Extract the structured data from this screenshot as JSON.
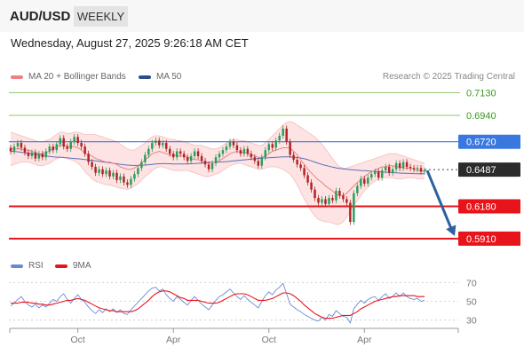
{
  "header": {
    "symbol": "AUD/USD",
    "timeframe": "WEEKLY",
    "datetime": "Wednesday, August 27, 2025 9:26:18 AM CET"
  },
  "legend": {
    "ma20": "MA 20 + Bollinger Bands",
    "ma50": "MA 50",
    "copyright": "Research © 2025 Trading Central",
    "rsi": "RSI",
    "rsi_ma": "9MA"
  },
  "colors": {
    "bollinger_fill": "#fde3e3",
    "ma20": "#f08080",
    "ma50": "#5a6fb8",
    "resistance_green": "#8cc76a",
    "pivot_blue": "#3a78e0",
    "support_red": "#e8141b",
    "candle_up": "#2e9c5c",
    "candle_down": "#b02424",
    "rsi_line": "#6a8ad6",
    "rsi_ma_line": "#e8141b",
    "arrow": "#2e5f9e"
  },
  "chart_data": [
    {
      "type": "candlestick",
      "title": "AUD/USD WEEKLY",
      "x_ticks": [
        "Oct",
        "Apr",
        "Oct",
        "Apr"
      ],
      "ylim": [
        0.585,
        0.72
      ],
      "current_price": "0.6487",
      "levels": [
        {
          "label": "0.7130",
          "value": 0.713,
          "kind": "resistance"
        },
        {
          "label": "0.6940",
          "value": 0.694,
          "kind": "resistance"
        },
        {
          "label": "0.6720",
          "value": 0.672,
          "kind": "pivot"
        },
        {
          "label": "0.6180",
          "value": 0.618,
          "kind": "support"
        },
        {
          "label": "0.5910",
          "value": 0.591,
          "kind": "support"
        }
      ],
      "projection": {
        "from": 0.648,
        "to": 0.591
      },
      "candles": [
        [
          0.667,
          0.664
        ],
        [
          0.664,
          0.668
        ],
        [
          0.668,
          0.671
        ],
        [
          0.671,
          0.667
        ],
        [
          0.667,
          0.663
        ],
        [
          0.663,
          0.66
        ],
        [
          0.66,
          0.663
        ],
        [
          0.663,
          0.658
        ],
        [
          0.658,
          0.662
        ],
        [
          0.662,
          0.659
        ],
        [
          0.659,
          0.664
        ],
        [
          0.664,
          0.668
        ],
        [
          0.668,
          0.665
        ],
        [
          0.665,
          0.67
        ],
        [
          0.67,
          0.675
        ],
        [
          0.675,
          0.668
        ],
        [
          0.668,
          0.666
        ],
        [
          0.666,
          0.672
        ],
        [
          0.672,
          0.676
        ],
        [
          0.676,
          0.671
        ],
        [
          0.671,
          0.668
        ],
        [
          0.668,
          0.662
        ],
        [
          0.662,
          0.655
        ],
        [
          0.655,
          0.651
        ],
        [
          0.651,
          0.646
        ],
        [
          0.646,
          0.649
        ],
        [
          0.649,
          0.645
        ],
        [
          0.645,
          0.648
        ],
        [
          0.648,
          0.643
        ],
        [
          0.643,
          0.646
        ],
        [
          0.646,
          0.64
        ],
        [
          0.64,
          0.643
        ],
        [
          0.643,
          0.638
        ],
        [
          0.638,
          0.636
        ],
        [
          0.636,
          0.641
        ],
        [
          0.641,
          0.645
        ],
        [
          0.645,
          0.65
        ],
        [
          0.65,
          0.655
        ],
        [
          0.655,
          0.661
        ],
        [
          0.661,
          0.666
        ],
        [
          0.666,
          0.671
        ],
        [
          0.671,
          0.673
        ],
        [
          0.673,
          0.669
        ],
        [
          0.669,
          0.671
        ],
        [
          0.671,
          0.666
        ],
        [
          0.666,
          0.662
        ],
        [
          0.662,
          0.659
        ],
        [
          0.659,
          0.664
        ],
        [
          0.664,
          0.662
        ],
        [
          0.662,
          0.659
        ],
        [
          0.659,
          0.656
        ],
        [
          0.656,
          0.66
        ],
        [
          0.66,
          0.664
        ],
        [
          0.664,
          0.66
        ],
        [
          0.66,
          0.656
        ],
        [
          0.656,
          0.653
        ],
        [
          0.653,
          0.649
        ],
        [
          0.649,
          0.654
        ],
        [
          0.654,
          0.659
        ],
        [
          0.659,
          0.662
        ],
        [
          0.662,
          0.665
        ],
        [
          0.665,
          0.668
        ],
        [
          0.668,
          0.672
        ],
        [
          0.672,
          0.669
        ],
        [
          0.669,
          0.665
        ],
        [
          0.665,
          0.662
        ],
        [
          0.662,
          0.666
        ],
        [
          0.666,
          0.662
        ],
        [
          0.662,
          0.659
        ],
        [
          0.659,
          0.656
        ],
        [
          0.656,
          0.652
        ],
        [
          0.652,
          0.659
        ],
        [
          0.659,
          0.665
        ],
        [
          0.665,
          0.67
        ],
        [
          0.67,
          0.667
        ],
        [
          0.667,
          0.673
        ],
        [
          0.673,
          0.677
        ],
        [
          0.677,
          0.683
        ],
        [
          0.683,
          0.672
        ],
        [
          0.672,
          0.661
        ],
        [
          0.661,
          0.657
        ],
        [
          0.657,
          0.653
        ],
        [
          0.653,
          0.65
        ],
        [
          0.65,
          0.644
        ],
        [
          0.644,
          0.638
        ],
        [
          0.638,
          0.632
        ],
        [
          0.632,
          0.625
        ],
        [
          0.625,
          0.621
        ],
        [
          0.621,
          0.624
        ],
        [
          0.624,
          0.62
        ],
        [
          0.62,
          0.625
        ],
        [
          0.625,
          0.623
        ],
        [
          0.623,
          0.631
        ],
        [
          0.631,
          0.627
        ],
        [
          0.627,
          0.624
        ],
        [
          0.624,
          0.621
        ],
        [
          0.621,
          0.605
        ],
        [
          0.605,
          0.629
        ],
        [
          0.629,
          0.635
        ],
        [
          0.635,
          0.641
        ],
        [
          0.641,
          0.637
        ],
        [
          0.637,
          0.642
        ],
        [
          0.642,
          0.645
        ],
        [
          0.645,
          0.647
        ],
        [
          0.647,
          0.642
        ],
        [
          0.642,
          0.648
        ],
        [
          0.648,
          0.651
        ],
        [
          0.651,
          0.646
        ],
        [
          0.646,
          0.649
        ],
        [
          0.649,
          0.654
        ],
        [
          0.654,
          0.65
        ],
        [
          0.65,
          0.655
        ],
        [
          0.655,
          0.651
        ],
        [
          0.651,
          0.65
        ],
        [
          0.65,
          0.649
        ],
        [
          0.649,
          0.65
        ],
        [
          0.65,
          0.647
        ],
        [
          0.647,
          0.648
        ]
      ],
      "ma50": [
        0.664,
        0.6638,
        0.6636,
        0.6632,
        0.6628,
        0.6624,
        0.662,
        0.6615,
        0.661,
        0.6605,
        0.66,
        0.6597,
        0.6594,
        0.6592,
        0.659,
        0.6588,
        0.6585,
        0.6582,
        0.658,
        0.6578,
        0.6575,
        0.6572,
        0.6568,
        0.6564,
        0.656,
        0.6556,
        0.6552,
        0.6548,
        0.6544,
        0.654,
        0.6536,
        0.6532,
        0.6528,
        0.6525,
        0.6523,
        0.6522,
        0.6522,
        0.6523,
        0.6525,
        0.6528,
        0.6531,
        0.6534,
        0.6536,
        0.6537,
        0.6537,
        0.6536,
        0.6535,
        0.6535,
        0.6535,
        0.6535,
        0.6535,
        0.6536,
        0.6538,
        0.654,
        0.6542,
        0.6544,
        0.6546,
        0.6548,
        0.6549,
        0.655,
        0.6552,
        0.6554,
        0.6557,
        0.656,
        0.6563,
        0.6566,
        0.6569,
        0.6572,
        0.6575,
        0.6578,
        0.658,
        0.6582,
        0.6584,
        0.6586,
        0.6588,
        0.659,
        0.6592,
        0.6594,
        0.6594,
        0.6593,
        0.6591,
        0.6588,
        0.6584,
        0.6578,
        0.657,
        0.656,
        0.655,
        0.654,
        0.653,
        0.6522,
        0.6515,
        0.6508,
        0.6502,
        0.6497,
        0.6493,
        0.649,
        0.6487,
        0.6484,
        0.6482,
        0.648,
        0.6478,
        0.6476,
        0.6474,
        0.6472,
        0.647,
        0.6468,
        0.6466,
        0.6464,
        0.6462,
        0.646,
        0.6458,
        0.6457,
        0.6456,
        0.6455,
        0.6454,
        0.6453,
        0.6452,
        0.6452
      ],
      "bollinger": {
        "upper": [
          0.68,
          0.679,
          0.678,
          0.677,
          0.676,
          0.675,
          0.674,
          0.673,
          0.672,
          0.672,
          0.673,
          0.674,
          0.676,
          0.678,
          0.68,
          0.68,
          0.679,
          0.679,
          0.68,
          0.68,
          0.679,
          0.678,
          0.678,
          0.678,
          0.678,
          0.677,
          0.676,
          0.675,
          0.674,
          0.673,
          0.672,
          0.67,
          0.668,
          0.666,
          0.665,
          0.665,
          0.667,
          0.669,
          0.671,
          0.674,
          0.676,
          0.677,
          0.677,
          0.676,
          0.675,
          0.674,
          0.674,
          0.673,
          0.673,
          0.672,
          0.671,
          0.67,
          0.669,
          0.669,
          0.669,
          0.668,
          0.667,
          0.666,
          0.666,
          0.667,
          0.669,
          0.671,
          0.673,
          0.674,
          0.674,
          0.673,
          0.673,
          0.672,
          0.671,
          0.67,
          0.669,
          0.669,
          0.671,
          0.674,
          0.677,
          0.68,
          0.683,
          0.686,
          0.688,
          0.689,
          0.688,
          0.686,
          0.684,
          0.682,
          0.68,
          0.678,
          0.676,
          0.673,
          0.67,
          0.666,
          0.662,
          0.658,
          0.654,
          0.651,
          0.65,
          0.65,
          0.651,
          0.652,
          0.653,
          0.654,
          0.655,
          0.656,
          0.657,
          0.658,
          0.659,
          0.66,
          0.661,
          0.662,
          0.662,
          0.662,
          0.661,
          0.66,
          0.659,
          0.658,
          0.657,
          0.656,
          0.655,
          0.654
        ],
        "lower": [
          0.652,
          0.653,
          0.654,
          0.655,
          0.655,
          0.655,
          0.654,
          0.653,
          0.652,
          0.652,
          0.653,
          0.654,
          0.656,
          0.658,
          0.659,
          0.659,
          0.658,
          0.657,
          0.656,
          0.654,
          0.651,
          0.647,
          0.644,
          0.641,
          0.639,
          0.638,
          0.637,
          0.636,
          0.636,
          0.635,
          0.634,
          0.633,
          0.633,
          0.632,
          0.633,
          0.635,
          0.637,
          0.64,
          0.643,
          0.645,
          0.648,
          0.65,
          0.651,
          0.651,
          0.65,
          0.649,
          0.648,
          0.648,
          0.648,
          0.648,
          0.648,
          0.647,
          0.646,
          0.645,
          0.644,
          0.643,
          0.643,
          0.644,
          0.645,
          0.646,
          0.648,
          0.65,
          0.652,
          0.653,
          0.654,
          0.654,
          0.653,
          0.652,
          0.651,
          0.65,
          0.649,
          0.649,
          0.65,
          0.651,
          0.651,
          0.651,
          0.65,
          0.649,
          0.647,
          0.645,
          0.641,
          0.636,
          0.63,
          0.624,
          0.619,
          0.614,
          0.61,
          0.607,
          0.606,
          0.605,
          0.605,
          0.604,
          0.603,
          0.603,
          0.605,
          0.609,
          0.614,
          0.619,
          0.623,
          0.627,
          0.631,
          0.634,
          0.637,
          0.639,
          0.641,
          0.642,
          0.642,
          0.642,
          0.642,
          0.641,
          0.641,
          0.641,
          0.642,
          0.642,
          0.642,
          0.641,
          0.641,
          0.641
        ]
      },
      "ma20": [
        0.666,
        0.666,
        0.666,
        0.666,
        0.665,
        0.665,
        0.664,
        0.663,
        0.662,
        0.662,
        0.663,
        0.664,
        0.666,
        0.668,
        0.669,
        0.669,
        0.668,
        0.668,
        0.668,
        0.667,
        0.665,
        0.662,
        0.661,
        0.66,
        0.658,
        0.657,
        0.656,
        0.655,
        0.655,
        0.654,
        0.653,
        0.651,
        0.65,
        0.649,
        0.649,
        0.65,
        0.652,
        0.654,
        0.657,
        0.659,
        0.662,
        0.663,
        0.664,
        0.663,
        0.662,
        0.661,
        0.661,
        0.66,
        0.66,
        0.66,
        0.659,
        0.658,
        0.657,
        0.657,
        0.656,
        0.655,
        0.655,
        0.655,
        0.655,
        0.656,
        0.658,
        0.66,
        0.662,
        0.663,
        0.664,
        0.663,
        0.663,
        0.662,
        0.661,
        0.66,
        0.659,
        0.659,
        0.66,
        0.662,
        0.664,
        0.665,
        0.666,
        0.667,
        0.667,
        0.667,
        0.664,
        0.661,
        0.657,
        0.653,
        0.649,
        0.646,
        0.643,
        0.64,
        0.638,
        0.635,
        0.633,
        0.631,
        0.628,
        0.627,
        0.627,
        0.629,
        0.632,
        0.635,
        0.638,
        0.64,
        0.643,
        0.645,
        0.647,
        0.648,
        0.65,
        0.651,
        0.651,
        0.652,
        0.652,
        0.651,
        0.651,
        0.65,
        0.65,
        0.65,
        0.649,
        0.648,
        0.648,
        0.647
      ]
    },
    {
      "type": "line",
      "title": "RSI",
      "ylim": [
        25,
        75
      ],
      "y_ticks": [
        "70",
        "50",
        "30"
      ],
      "series": [
        {
          "name": "RSI",
          "values": [
            45,
            48,
            52,
            55,
            50,
            46,
            44,
            47,
            43,
            46,
            44,
            48,
            52,
            50,
            55,
            58,
            52,
            48,
            53,
            57,
            52,
            49,
            44,
            40,
            37,
            41,
            38,
            42,
            39,
            42,
            38,
            41,
            37,
            36,
            41,
            45,
            49,
            53,
            57,
            61,
            64,
            65,
            61,
            63,
            57,
            53,
            50,
            55,
            52,
            49,
            46,
            51,
            55,
            51,
            47,
            44,
            41,
            46,
            51,
            55,
            57,
            60,
            63,
            59,
            55,
            52,
            56,
            52,
            49,
            46,
            43,
            50,
            56,
            60,
            57,
            62,
            65,
            69,
            58,
            47,
            44,
            41,
            39,
            36,
            34,
            32,
            30,
            29,
            33,
            30,
            36,
            34,
            40,
            37,
            34,
            33,
            27,
            42,
            47,
            51,
            48,
            52,
            54,
            55,
            51,
            55,
            58,
            53,
            55,
            59,
            55,
            59,
            55,
            53,
            52,
            53,
            50,
            51
          ]
        },
        {
          "name": "9MA",
          "values": [
            48,
            48,
            48,
            49,
            49,
            49,
            48,
            48,
            47,
            47,
            46,
            46,
            47,
            48,
            49,
            50,
            51,
            51,
            52,
            53,
            52,
            51,
            49,
            47,
            45,
            43,
            42,
            41,
            40,
            40,
            39,
            39,
            39,
            39,
            39,
            40,
            42,
            45,
            48,
            51,
            55,
            58,
            60,
            61,
            61,
            60,
            58,
            56,
            54,
            53,
            51,
            51,
            51,
            51,
            50,
            49,
            48,
            48,
            48,
            49,
            51,
            53,
            55,
            57,
            58,
            58,
            58,
            57,
            55,
            53,
            51,
            51,
            51,
            52,
            53,
            55,
            57,
            59,
            59,
            58,
            56,
            53,
            50,
            46,
            43,
            40,
            37,
            35,
            33,
            32,
            32,
            32,
            33,
            34,
            35,
            35,
            35,
            37,
            39,
            42,
            44,
            46,
            48,
            50,
            51,
            52,
            53,
            54,
            55,
            55,
            56,
            56,
            56,
            56,
            56,
            55,
            55,
            55
          ]
        }
      ]
    }
  ]
}
